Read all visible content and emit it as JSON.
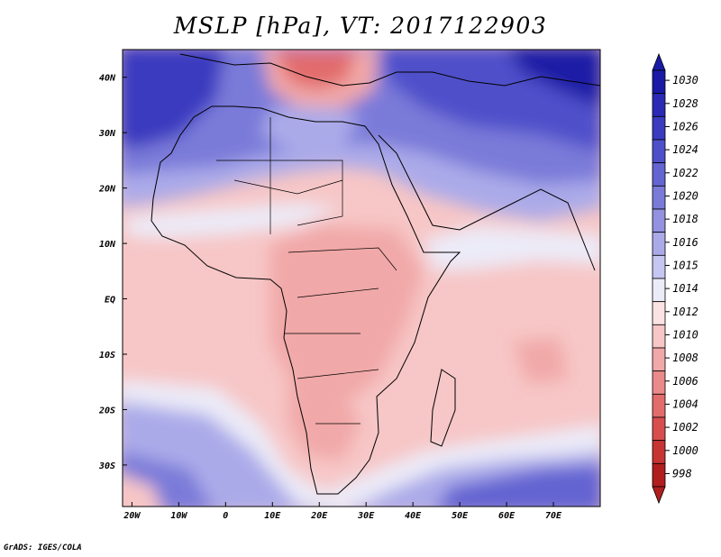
{
  "title": "MSLP [hPa], VT: 2017122903",
  "credit": "GrADS: IGES/COLA",
  "lat_labels": [
    "40N",
    "30N",
    "20N",
    "10N",
    "EQ",
    "10S",
    "20S",
    "30S"
  ],
  "lat_values": [
    40,
    30,
    20,
    10,
    0,
    -10,
    -20,
    -30
  ],
  "lon_labels": [
    "20W",
    "10W",
    "0",
    "10E",
    "20E",
    "30E",
    "40E",
    "50E",
    "60E",
    "70E"
  ],
  "lon_values": [
    -20,
    -10,
    0,
    10,
    20,
    30,
    40,
    50,
    60,
    70
  ],
  "colorbar": {
    "labels": [
      "1030",
      "1028",
      "1026",
      "1024",
      "1022",
      "1020",
      "1018",
      "1016",
      "1015",
      "1014",
      "1012",
      "1010",
      "1008",
      "1006",
      "1004",
      "1002",
      "1000",
      "998"
    ],
    "colors": [
      "#1a1aa6",
      "#2a2ab4",
      "#3b3bc0",
      "#4f4fca",
      "#6464d2",
      "#7a7ad9",
      "#9292e1",
      "#abaae9",
      "#c6c6f2",
      "#ecebf8",
      "#fce3e3",
      "#f7c6c6",
      "#f1a8a8",
      "#ea8a8a",
      "#e26c6c",
      "#d84e4e",
      "#c73434",
      "#b01e1e"
    ]
  },
  "map_colors": {
    "deep_high": "#2a2ab4",
    "high": "#6464d2",
    "mid_high": "#abaae9",
    "neutral": "#ecebf8",
    "low": "#f7c6c6",
    "mid_low": "#f1a8a8",
    "deep_low": "#e26c6c"
  }
}
